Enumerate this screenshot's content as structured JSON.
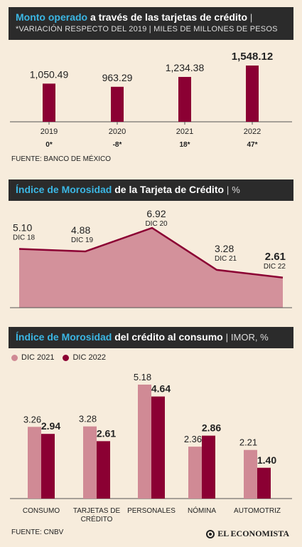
{
  "colors": {
    "primary": "#8b0033",
    "light": "#d08a95",
    "area": "#d3919b",
    "header_bg": "#2b2b2b",
    "highlight": "#3bb6e3"
  },
  "brand": "EL ECONOMISTA",
  "section1": {
    "title_highlight": "Monto operado",
    "title_rest": "a través de las tarjetas de crédito",
    "subtitle": "*VARIACIÓN RESPECTO DEL 2019 | MILES DE MILLONES DE PESOS",
    "source": "FUENTE: BANCO DE MÉXICO"
  },
  "section2": {
    "title_highlight": "Índice de Morosidad",
    "title_rest": "de la Tarjeta de Crédito",
    "title_unit": "%"
  },
  "section3": {
    "title_highlight": "Índice de Morosidad",
    "title_rest": "del crédito al consumo",
    "title_unit": "IMOR, %",
    "source": "FUENTE: CNBV"
  },
  "chart_data": [
    {
      "type": "bar",
      "categories": [
        "2019",
        "2020",
        "2021",
        "2022"
      ],
      "values": [
        1050.49,
        963.29,
        1234.38,
        1548.12
      ],
      "value_labels": [
        "1,050.49",
        "963.29",
        "1,234.38",
        "1,548.12"
      ],
      "variation_labels": [
        "0*",
        "-8*",
        "18*",
        "47*"
      ],
      "ylim": [
        0,
        1548.12
      ]
    },
    {
      "type": "area",
      "categories": [
        "DIC 18",
        "DIC 19",
        "DIC 20",
        "DIC 21",
        "DIC 22"
      ],
      "values": [
        5.1,
        4.88,
        6.92,
        3.28,
        2.61
      ],
      "value_labels": [
        "5.10",
        "4.88",
        "6.92",
        "3.28",
        "2.61"
      ],
      "ylim": [
        0,
        6.92
      ]
    },
    {
      "type": "bar",
      "categories": [
        "CONSUMO",
        "TARJETAS DE CRÉDITO",
        "PERSONALES",
        "NÓMINA",
        "AUTOMOTRIZ"
      ],
      "category_lines": [
        [
          "CONSUMO"
        ],
        [
          "TARJETAS DE",
          "CRÉDITO"
        ],
        [
          "PERSONALES"
        ],
        [
          "NÓMINA"
        ],
        [
          "AUTOMOTRIZ"
        ]
      ],
      "series": [
        {
          "name": "DIC 2021",
          "values": [
            3.26,
            3.28,
            5.18,
            2.36,
            2.21
          ],
          "labels": [
            "3.26",
            "3.28",
            "5.18",
            "2.36",
            "2.21"
          ]
        },
        {
          "name": "DIC 2022",
          "values": [
            2.94,
            2.61,
            4.64,
            2.86,
            1.4
          ],
          "labels": [
            "2.94",
            "2.61",
            "4.64",
            "2.86",
            "1.40"
          ]
        }
      ],
      "legend_position": "top-left",
      "ylim": [
        0,
        5.18
      ]
    }
  ]
}
